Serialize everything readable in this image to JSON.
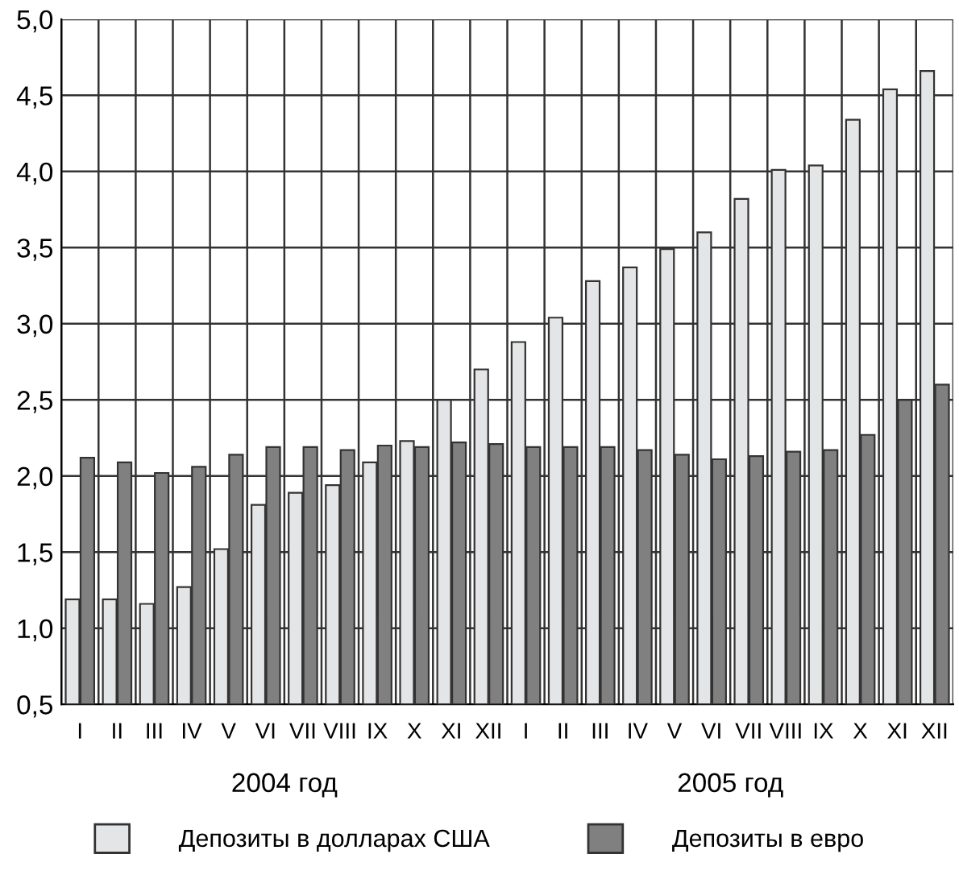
{
  "chart_data": {
    "type": "bar",
    "categories": [
      "I",
      "II",
      "III",
      "IV",
      "V",
      "VI",
      "VII",
      "VIII",
      "IX",
      "X",
      "XI",
      "XII",
      "I",
      "II",
      "III",
      "IV",
      "V",
      "VI",
      "VII",
      "VIII",
      "IX",
      "X",
      "XI",
      "XII"
    ],
    "series": [
      {
        "name": "Депозиты в долларах США",
        "color": "#e4e5e6",
        "values": [
          1.19,
          1.19,
          1.16,
          1.27,
          1.52,
          1.81,
          1.89,
          1.94,
          2.09,
          2.23,
          2.5,
          2.7,
          2.88,
          3.04,
          3.28,
          3.37,
          3.49,
          3.6,
          3.82,
          4.01,
          4.04,
          4.34,
          4.54,
          4.66
        ]
      },
      {
        "name": "Депозиты в евро",
        "color": "#808080",
        "values": [
          2.12,
          2.09,
          2.02,
          2.06,
          2.14,
          2.19,
          2.19,
          2.17,
          2.2,
          2.19,
          2.22,
          2.21,
          2.19,
          2.19,
          2.19,
          2.17,
          2.14,
          2.11,
          2.13,
          2.16,
          2.17,
          2.27,
          2.5,
          2.6
        ]
      }
    ],
    "ylim": [
      0.5,
      5.0
    ],
    "yticks": [
      {
        "value": 0.5,
        "label": "0,5"
      },
      {
        "value": 1.0,
        "label": "1,0"
      },
      {
        "value": 1.5,
        "label": "1,5"
      },
      {
        "value": 2.0,
        "label": "2,0"
      },
      {
        "value": 2.5,
        "label": "2,5"
      },
      {
        "value": 3.0,
        "label": "3,0"
      },
      {
        "value": 3.5,
        "label": "3,5"
      },
      {
        "value": 4.0,
        "label": "4,0"
      },
      {
        "value": 4.5,
        "label": "4,5"
      },
      {
        "value": 5.0,
        "label": "5,0"
      }
    ],
    "annotations": [
      "2004 год",
      "2005 год"
    ],
    "grid": true,
    "legend": "bottom"
  }
}
